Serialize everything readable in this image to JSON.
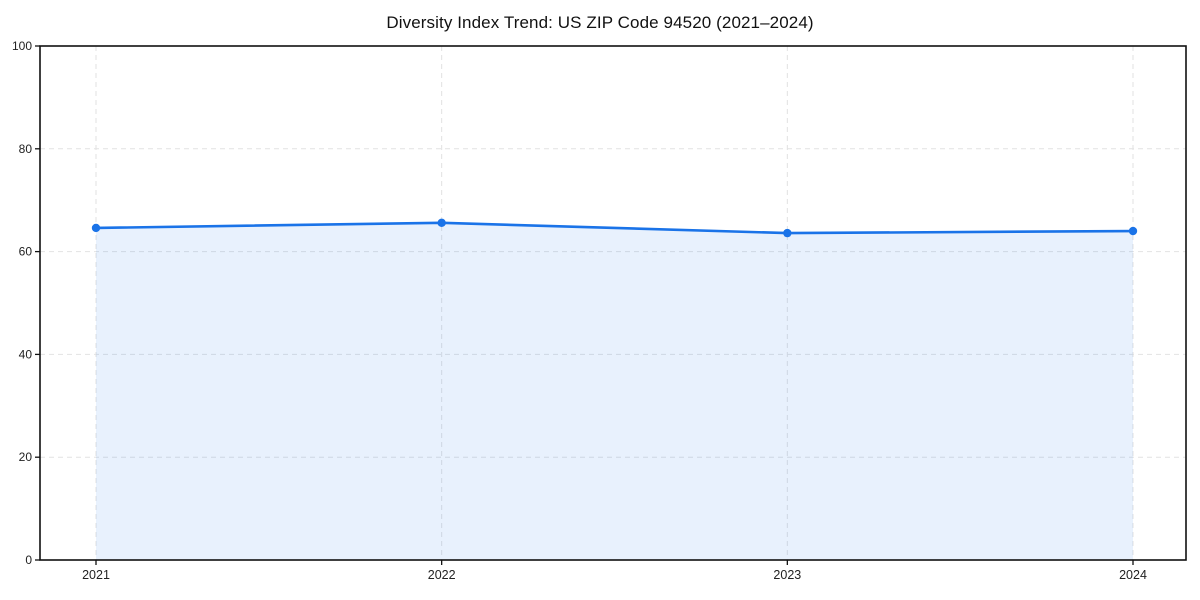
{
  "chart": {
    "title": "Diversity Index Trend: US ZIP Code 94520 (2021–2024)"
  },
  "chart_data": {
    "type": "area",
    "title": "Diversity Index Trend: US ZIP Code 94520 (2021–2024)",
    "categories": [
      "2021",
      "2022",
      "2023",
      "2024"
    ],
    "series": [
      {
        "name": "Diversity Index",
        "values": [
          64.6,
          65.6,
          63.6,
          64.0
        ]
      }
    ],
    "xlabel": "",
    "ylabel": "",
    "ylim": [
      0,
      100
    ],
    "yticks": [
      0,
      20,
      40,
      60,
      80,
      100
    ],
    "grid": "dashed",
    "legend": "none",
    "markers": true,
    "line_color": "#1a73e8",
    "fill_color": "#1a73e8",
    "fill_opacity": 0.1,
    "grid_color": "#e2e2e2",
    "axis_color": "#111111",
    "tick_text_color": "#222222",
    "background": "#ffffff"
  }
}
